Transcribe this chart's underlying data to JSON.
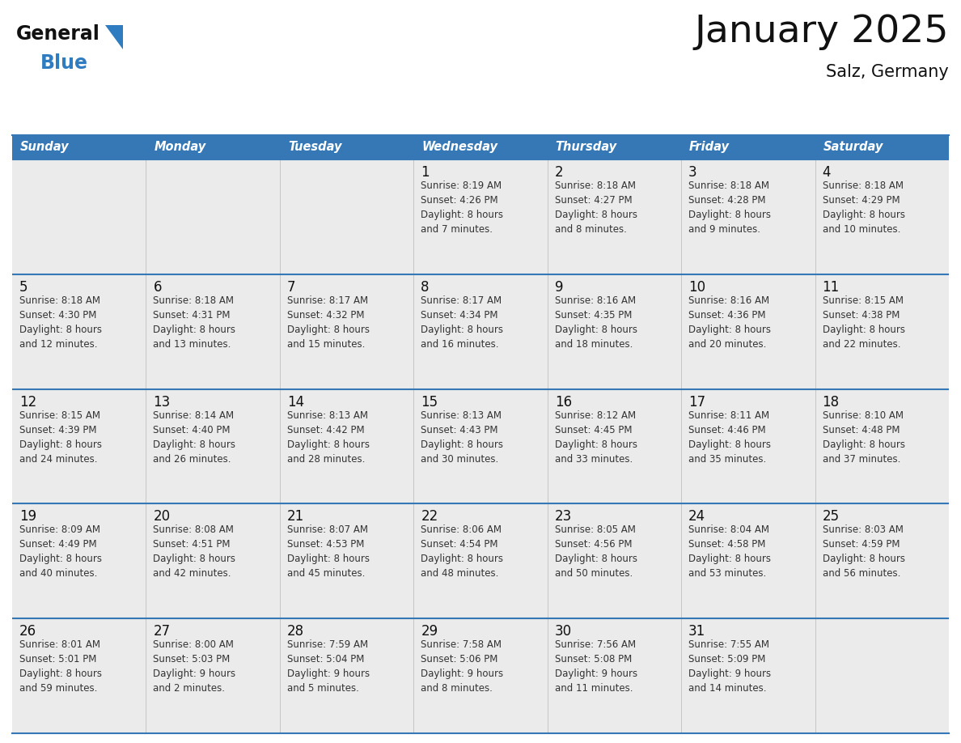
{
  "title": "January 2025",
  "subtitle": "Salz, Germany",
  "header_bg_color": "#3578b5",
  "header_text_color": "#ffffff",
  "cell_bg_color": "#ebebeb",
  "border_color": "#3578b5",
  "day_headers": [
    "Sunday",
    "Monday",
    "Tuesday",
    "Wednesday",
    "Thursday",
    "Friday",
    "Saturday"
  ],
  "title_color": "#111111",
  "subtitle_color": "#111111",
  "day_num_color": "#111111",
  "cell_text_color": "#333333",
  "logo_general_color": "#111111",
  "logo_blue_color": "#2f7dc0",
  "logo_triangle_color": "#2f7dc0",
  "calendar": [
    [
      {
        "day": "",
        "info": ""
      },
      {
        "day": "",
        "info": ""
      },
      {
        "day": "",
        "info": ""
      },
      {
        "day": "1",
        "info": "Sunrise: 8:19 AM\nSunset: 4:26 PM\nDaylight: 8 hours\nand 7 minutes."
      },
      {
        "day": "2",
        "info": "Sunrise: 8:18 AM\nSunset: 4:27 PM\nDaylight: 8 hours\nand 8 minutes."
      },
      {
        "day": "3",
        "info": "Sunrise: 8:18 AM\nSunset: 4:28 PM\nDaylight: 8 hours\nand 9 minutes."
      },
      {
        "day": "4",
        "info": "Sunrise: 8:18 AM\nSunset: 4:29 PM\nDaylight: 8 hours\nand 10 minutes."
      }
    ],
    [
      {
        "day": "5",
        "info": "Sunrise: 8:18 AM\nSunset: 4:30 PM\nDaylight: 8 hours\nand 12 minutes."
      },
      {
        "day": "6",
        "info": "Sunrise: 8:18 AM\nSunset: 4:31 PM\nDaylight: 8 hours\nand 13 minutes."
      },
      {
        "day": "7",
        "info": "Sunrise: 8:17 AM\nSunset: 4:32 PM\nDaylight: 8 hours\nand 15 minutes."
      },
      {
        "day": "8",
        "info": "Sunrise: 8:17 AM\nSunset: 4:34 PM\nDaylight: 8 hours\nand 16 minutes."
      },
      {
        "day": "9",
        "info": "Sunrise: 8:16 AM\nSunset: 4:35 PM\nDaylight: 8 hours\nand 18 minutes."
      },
      {
        "day": "10",
        "info": "Sunrise: 8:16 AM\nSunset: 4:36 PM\nDaylight: 8 hours\nand 20 minutes."
      },
      {
        "day": "11",
        "info": "Sunrise: 8:15 AM\nSunset: 4:38 PM\nDaylight: 8 hours\nand 22 minutes."
      }
    ],
    [
      {
        "day": "12",
        "info": "Sunrise: 8:15 AM\nSunset: 4:39 PM\nDaylight: 8 hours\nand 24 minutes."
      },
      {
        "day": "13",
        "info": "Sunrise: 8:14 AM\nSunset: 4:40 PM\nDaylight: 8 hours\nand 26 minutes."
      },
      {
        "day": "14",
        "info": "Sunrise: 8:13 AM\nSunset: 4:42 PM\nDaylight: 8 hours\nand 28 minutes."
      },
      {
        "day": "15",
        "info": "Sunrise: 8:13 AM\nSunset: 4:43 PM\nDaylight: 8 hours\nand 30 minutes."
      },
      {
        "day": "16",
        "info": "Sunrise: 8:12 AM\nSunset: 4:45 PM\nDaylight: 8 hours\nand 33 minutes."
      },
      {
        "day": "17",
        "info": "Sunrise: 8:11 AM\nSunset: 4:46 PM\nDaylight: 8 hours\nand 35 minutes."
      },
      {
        "day": "18",
        "info": "Sunrise: 8:10 AM\nSunset: 4:48 PM\nDaylight: 8 hours\nand 37 minutes."
      }
    ],
    [
      {
        "day": "19",
        "info": "Sunrise: 8:09 AM\nSunset: 4:49 PM\nDaylight: 8 hours\nand 40 minutes."
      },
      {
        "day": "20",
        "info": "Sunrise: 8:08 AM\nSunset: 4:51 PM\nDaylight: 8 hours\nand 42 minutes."
      },
      {
        "day": "21",
        "info": "Sunrise: 8:07 AM\nSunset: 4:53 PM\nDaylight: 8 hours\nand 45 minutes."
      },
      {
        "day": "22",
        "info": "Sunrise: 8:06 AM\nSunset: 4:54 PM\nDaylight: 8 hours\nand 48 minutes."
      },
      {
        "day": "23",
        "info": "Sunrise: 8:05 AM\nSunset: 4:56 PM\nDaylight: 8 hours\nand 50 minutes."
      },
      {
        "day": "24",
        "info": "Sunrise: 8:04 AM\nSunset: 4:58 PM\nDaylight: 8 hours\nand 53 minutes."
      },
      {
        "day": "25",
        "info": "Sunrise: 8:03 AM\nSunset: 4:59 PM\nDaylight: 8 hours\nand 56 minutes."
      }
    ],
    [
      {
        "day": "26",
        "info": "Sunrise: 8:01 AM\nSunset: 5:01 PM\nDaylight: 8 hours\nand 59 minutes."
      },
      {
        "day": "27",
        "info": "Sunrise: 8:00 AM\nSunset: 5:03 PM\nDaylight: 9 hours\nand 2 minutes."
      },
      {
        "day": "28",
        "info": "Sunrise: 7:59 AM\nSunset: 5:04 PM\nDaylight: 9 hours\nand 5 minutes."
      },
      {
        "day": "29",
        "info": "Sunrise: 7:58 AM\nSunset: 5:06 PM\nDaylight: 9 hours\nand 8 minutes."
      },
      {
        "day": "30",
        "info": "Sunrise: 7:56 AM\nSunset: 5:08 PM\nDaylight: 9 hours\nand 11 minutes."
      },
      {
        "day": "31",
        "info": "Sunrise: 7:55 AM\nSunset: 5:09 PM\nDaylight: 9 hours\nand 14 minutes."
      },
      {
        "day": "",
        "info": ""
      }
    ]
  ]
}
